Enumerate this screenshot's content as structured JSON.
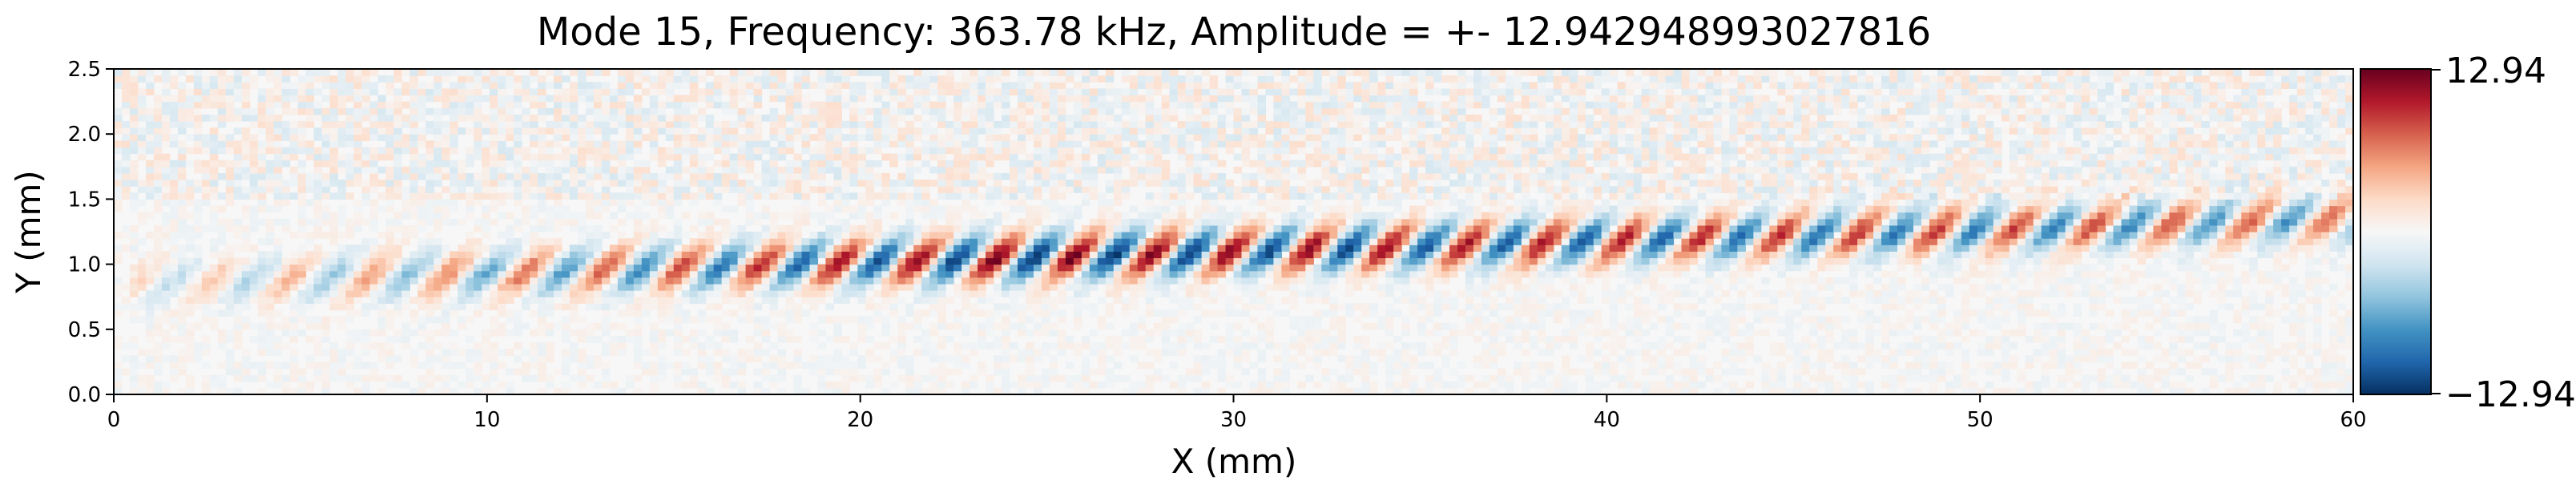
{
  "chart_data": {
    "type": "heatmap",
    "title": "Mode 15, Frequency: 363.78 kHz, Amplitude = +- 12.942948993027816",
    "xlabel": "X (mm)",
    "ylabel": "Y (mm)",
    "xlim": [
      0,
      60
    ],
    "ylim": [
      0,
      2.5
    ],
    "x_ticks": [
      "0",
      "10",
      "20",
      "30",
      "40",
      "50",
      "60"
    ],
    "y_ticks": [
      "0.0",
      "0.5",
      "1.0",
      "1.5",
      "2.0",
      "2.5"
    ],
    "colormap": "RdBu_r",
    "colorbar": {
      "min": -12.942948993027816,
      "max": 12.942948993027816,
      "max_label": "12.94",
      "min_label": "−12.94",
      "colors": [
        "#053061",
        "#2166ac",
        "#4393c3",
        "#92c5de",
        "#d1e5f0",
        "#f7f7f7",
        "#fddbc7",
        "#f4a582",
        "#d6604d",
        "#b2182b",
        "#67001f"
      ]
    },
    "wave_packet": {
      "x_range": [
        0.5,
        60
      ],
      "center_y_start": 0.85,
      "center_y_end": 1.35,
      "wavelength_mm": 2.1,
      "peak_x_mm": 24,
      "peak_amplitude": 12.94,
      "tail_amplitude": 7.5
    }
  }
}
